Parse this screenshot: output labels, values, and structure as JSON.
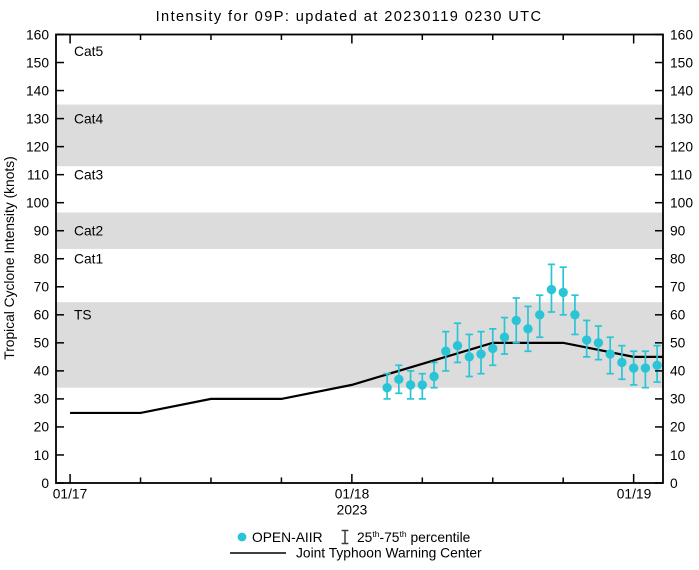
{
  "title": "Intensity for 09P: updated at 20230119 0230 UTC",
  "colors": {
    "accent_cyan": "#29C5D6",
    "band_gray": "#DCDCDC",
    "line_black": "#000000",
    "glyph_gray": "#3d3d3d"
  },
  "axes": {
    "ylabel": "Tropical Cyclone Intensity (knots)",
    "ylim": [
      0,
      160
    ],
    "ytick_step": 10,
    "x_tick_labels": [
      "01/17",
      "01/18",
      "01/19"
    ],
    "year_label": "2023",
    "xlim_hours": [
      -1.2,
      50.5
    ],
    "x_major_hours": [
      0,
      24,
      48
    ],
    "x_minor_hours": [
      6,
      12,
      18,
      30,
      36,
      42
    ]
  },
  "bands": [
    {
      "label": "TS",
      "lo": 34,
      "hi": 64.5,
      "shaded": true,
      "label_at": 60
    },
    {
      "label": "Cat1",
      "lo": 64.5,
      "hi": 83.5,
      "shaded": false,
      "label_at": 80
    },
    {
      "label": "Cat2",
      "lo": 83.5,
      "hi": 96.5,
      "shaded": true,
      "label_at": 90
    },
    {
      "label": "Cat3",
      "lo": 96.5,
      "hi": 113,
      "shaded": false,
      "label_at": 110
    },
    {
      "label": "Cat4",
      "lo": 113,
      "hi": 135,
      "shaded": true,
      "label_at": 130
    },
    {
      "label": "Cat5",
      "lo": 135,
      "hi": 160,
      "shaded": false,
      "label_at": 154
    }
  ],
  "chart_data": {
    "type": "line+scatter",
    "title": "Intensity for 09P: updated at 20230119 0230 UTC",
    "x_unit": "hours since 2023-01-17 00:00 UTC",
    "y_unit": "knots",
    "series": [
      {
        "name": "OPEN-AIIR",
        "type": "scatter_errorbar",
        "errorbar_meaning": "25th-75th percentile",
        "points": [
          {
            "time": "01/18 03:00",
            "h": 27,
            "v": 34,
            "p25": 30,
            "p75": 39
          },
          {
            "time": "01/18 04:00",
            "h": 28,
            "v": 37,
            "p25": 32,
            "p75": 42
          },
          {
            "time": "01/18 05:00",
            "h": 29,
            "v": 35,
            "p25": 30,
            "p75": 40
          },
          {
            "time": "01/18 06:00",
            "h": 30,
            "v": 35,
            "p25": 30,
            "p75": 39
          },
          {
            "time": "01/18 07:00",
            "h": 31,
            "v": 38,
            "p25": 34,
            "p75": 43
          },
          {
            "time": "01/18 08:00",
            "h": 32,
            "v": 47,
            "p25": 40,
            "p75": 54
          },
          {
            "time": "01/18 09:00",
            "h": 33,
            "v": 49,
            "p25": 43,
            "p75": 57
          },
          {
            "time": "01/18 10:00",
            "h": 34,
            "v": 45,
            "p25": 38,
            "p75": 53
          },
          {
            "time": "01/18 11:00",
            "h": 35,
            "v": 46,
            "p25": 39,
            "p75": 54
          },
          {
            "time": "01/18 12:00",
            "h": 36,
            "v": 48,
            "p25": 42,
            "p75": 55
          },
          {
            "time": "01/18 13:00",
            "h": 37,
            "v": 52,
            "p25": 46,
            "p75": 59
          },
          {
            "time": "01/18 14:00",
            "h": 38,
            "v": 58,
            "p25": 50,
            "p75": 66
          },
          {
            "time": "01/18 15:00",
            "h": 39,
            "v": 55,
            "p25": 47,
            "p75": 63
          },
          {
            "time": "01/18 16:00",
            "h": 40,
            "v": 60,
            "p25": 52,
            "p75": 67
          },
          {
            "time": "01/18 17:00",
            "h": 41,
            "v": 69,
            "p25": 61,
            "p75": 78
          },
          {
            "time": "01/18 18:00",
            "h": 42,
            "v": 68,
            "p25": 60,
            "p75": 77
          },
          {
            "time": "01/18 19:00",
            "h": 43,
            "v": 60,
            "p25": 53,
            "p75": 67
          },
          {
            "time": "01/18 20:00",
            "h": 44,
            "v": 51,
            "p25": 45,
            "p75": 58
          },
          {
            "time": "01/18 21:00",
            "h": 45,
            "v": 50,
            "p25": 44,
            "p75": 56
          },
          {
            "time": "01/18 22:00",
            "h": 46,
            "v": 46,
            "p25": 39,
            "p75": 52
          },
          {
            "time": "01/18 23:00",
            "h": 47,
            "v": 43,
            "p25": 37,
            "p75": 49
          },
          {
            "time": "01/19 00:00",
            "h": 48,
            "v": 41,
            "p25": 35,
            "p75": 47
          },
          {
            "time": "01/19 01:00",
            "h": 49,
            "v": 41,
            "p25": 34,
            "p75": 47
          },
          {
            "time": "01/19 02:00",
            "h": 50,
            "v": 42,
            "p25": 36,
            "p75": 49
          }
        ]
      },
      {
        "name": "Joint Typhoon Warning Center",
        "type": "line",
        "points": [
          {
            "h": 0,
            "v": 25
          },
          {
            "h": 6,
            "v": 25
          },
          {
            "h": 12,
            "v": 30
          },
          {
            "h": 18,
            "v": 30
          },
          {
            "h": 24,
            "v": 35
          },
          {
            "h": 36,
            "v": 50
          },
          {
            "h": 42,
            "v": 50
          },
          {
            "h": 48,
            "v": 45
          },
          {
            "h": 50.5,
            "v": 45
          }
        ]
      }
    ]
  },
  "legend": {
    "open_aiir": "OPEN-AIIR",
    "pct_25": "25",
    "pct_sup1": "th",
    "pct_mid": "-75",
    "pct_sup2": "th",
    "pct_word": " percentile",
    "jtwc": "Joint Typhoon Warning Center"
  }
}
